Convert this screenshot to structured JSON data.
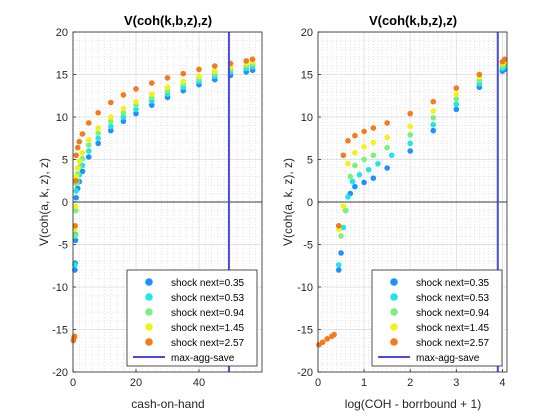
{
  "chart_data": [
    {
      "type": "scatter",
      "title": "V(coh(k,b,z),z)",
      "xlabel": "cash-on-hand",
      "ylabel": "V(coh(a, k, z), z)",
      "xlim": [
        0,
        60
      ],
      "ylim": [
        -20,
        20
      ],
      "xticks": [
        "0",
        "20",
        "40"
      ],
      "yticks": [
        "-20",
        "-15",
        "-10",
        "-5",
        "0",
        "5",
        "10",
        "15",
        "20"
      ],
      "grid": "on",
      "minor_grid": "on",
      "legend_placement": "bottom-right",
      "vertical_line": {
        "name": "max-agg-save",
        "x": 49.5,
        "color": "#4a4ae0"
      },
      "zero_line": 0,
      "series": [
        {
          "name": "shock next=0.35",
          "color": "#1e90ff",
          "points": [
            [
              0.6,
              -8.0
            ],
            [
              0.7,
              -7.2
            ],
            [
              0.8,
              -4.5
            ],
            [
              1,
              0.5
            ],
            [
              1.5,
              1.6
            ],
            [
              2,
              2.4
            ],
            [
              3,
              3.6
            ],
            [
              5,
              5.3
            ],
            [
              8,
              6.9
            ],
            [
              12,
              8.4
            ],
            [
              16,
              9.5
            ],
            [
              20,
              10.4
            ],
            [
              25,
              11.4
            ],
            [
              30,
              12.3
            ],
            [
              35,
              13.1
            ],
            [
              40,
              13.8
            ],
            [
              45,
              14.4
            ],
            [
              50,
              14.9
            ],
            [
              55,
              15.3
            ],
            [
              57,
              15.5
            ]
          ]
        },
        {
          "name": "shock next=0.53",
          "color": "#22e5e5",
          "points": [
            [
              0.6,
              -7.4
            ],
            [
              0.8,
              -3.8
            ],
            [
              1,
              1.3
            ],
            [
              1.5,
              2.4
            ],
            [
              2,
              3.2
            ],
            [
              3,
              4.3
            ],
            [
              5,
              6.0
            ],
            [
              8,
              7.5
            ],
            [
              12,
              8.9
            ],
            [
              16,
              10.0
            ],
            [
              20,
              10.9
            ],
            [
              25,
              11.9
            ],
            [
              30,
              12.7
            ],
            [
              35,
              13.5
            ],
            [
              40,
              14.2
            ],
            [
              45,
              14.8
            ],
            [
              50,
              15.3
            ],
            [
              55,
              15.7
            ],
            [
              57,
              15.9
            ]
          ]
        },
        {
          "name": "shock next=0.94",
          "color": "#7cf07c",
          "points": [
            [
              0.7,
              -4.0
            ],
            [
              0.9,
              -1.0
            ],
            [
              1,
              2.2
            ],
            [
              1.5,
              3.3
            ],
            [
              2,
              4.1
            ],
            [
              3,
              5.1
            ],
            [
              5,
              6.7
            ],
            [
              8,
              8.1
            ],
            [
              12,
              9.5
            ],
            [
              16,
              10.5
            ],
            [
              20,
              11.4
            ],
            [
              25,
              12.3
            ],
            [
              30,
              13.1
            ],
            [
              35,
              13.9
            ],
            [
              40,
              14.5
            ],
            [
              45,
              15.1
            ],
            [
              50,
              15.6
            ],
            [
              55,
              16.0
            ],
            [
              57,
              16.2
            ]
          ]
        },
        {
          "name": "shock next=1.45",
          "color": "#f2f21a",
          "points": [
            [
              0.6,
              -3.2
            ],
            [
              0.8,
              -0.5
            ],
            [
              1,
              3.0
            ],
            [
              1.5,
              4.0
            ],
            [
              2,
              4.8
            ],
            [
              3,
              5.8
            ],
            [
              5,
              7.3
            ],
            [
              8,
              8.7
            ],
            [
              12,
              10.0
            ],
            [
              16,
              11.0
            ],
            [
              20,
              11.8
            ],
            [
              25,
              12.7
            ],
            [
              30,
              13.5
            ],
            [
              35,
              14.2
            ],
            [
              40,
              14.8
            ],
            [
              45,
              15.4
            ],
            [
              50,
              15.9
            ],
            [
              55,
              16.3
            ],
            [
              57,
              16.5
            ]
          ]
        },
        {
          "name": "shock next=2.57",
          "color": "#f47a1e",
          "points": [
            [
              0.1,
              -16.3
            ],
            [
              0.3,
              -16.0
            ],
            [
              0.5,
              -15.8
            ],
            [
              0.7,
              -2.8
            ],
            [
              0.9,
              2.5
            ],
            [
              1,
              5.5
            ],
            [
              1.5,
              6.4
            ],
            [
              2,
              7.1
            ],
            [
              3,
              8.0
            ],
            [
              5,
              9.3
            ],
            [
              8,
              10.5
            ],
            [
              12,
              11.7
            ],
            [
              16,
              12.6
            ],
            [
              20,
              13.3
            ],
            [
              25,
              14.0
            ],
            [
              30,
              14.6
            ],
            [
              35,
              15.1
            ],
            [
              40,
              15.6
            ],
            [
              45,
              16.0
            ],
            [
              50,
              16.3
            ],
            [
              55,
              16.6
            ],
            [
              57,
              16.8
            ]
          ]
        }
      ]
    },
    {
      "type": "scatter",
      "title": "V(coh(k,b,z),z)",
      "xlabel": "log(COH - borrbound + 1)",
      "ylabel": "V(coh(a, k, z), z)",
      "xlim": [
        0,
        4.1
      ],
      "ylim": [
        -20,
        20
      ],
      "xticks": [
        "0",
        "1",
        "2",
        "3",
        "4"
      ],
      "yticks": [
        "-20",
        "-15",
        "-10",
        "-5",
        "0",
        "5",
        "10",
        "15",
        "20"
      ],
      "grid": "on",
      "minor_grid": "on",
      "legend_placement": "bottom-right",
      "vertical_line": {
        "name": "max-agg-save",
        "x": 3.9,
        "color": "#4a4ae0"
      },
      "zero_line": 0,
      "series": [
        {
          "name": "shock next=0.35",
          "color": "#1e90ff",
          "points": [
            [
              0.45,
              -8.0
            ],
            [
              0.5,
              -6.0
            ],
            [
              0.6,
              -1.0
            ],
            [
              0.7,
              1.0
            ],
            [
              0.8,
              1.8
            ],
            [
              1.0,
              2.3
            ],
            [
              1.2,
              2.8
            ],
            [
              1.5,
              4.0
            ],
            [
              2.0,
              6.0
            ],
            [
              2.5,
              8.4
            ],
            [
              3.0,
              10.9
            ],
            [
              3.5,
              13.5
            ],
            [
              4.0,
              15.4
            ],
            [
              4.05,
              15.6
            ]
          ]
        },
        {
          "name": "shock next=0.53",
          "color": "#22e5e5",
          "points": [
            [
              0.45,
              -7.4
            ],
            [
              0.55,
              -3.0
            ],
            [
              0.65,
              0.6
            ],
            [
              0.75,
              2.4
            ],
            [
              0.9,
              3.2
            ],
            [
              1.1,
              3.8
            ],
            [
              1.3,
              4.5
            ],
            [
              1.6,
              5.5
            ],
            [
              2.0,
              6.9
            ],
            [
              2.5,
              9.1
            ],
            [
              3.0,
              11.5
            ],
            [
              3.5,
              13.9
            ],
            [
              4.0,
              15.7
            ],
            [
              4.05,
              15.9
            ]
          ]
        },
        {
          "name": "shock next=0.94",
          "color": "#7cf07c",
          "points": [
            [
              0.5,
              -4.0
            ],
            [
              0.6,
              -1.0
            ],
            [
              0.7,
              3.0
            ],
            [
              0.8,
              4.3
            ],
            [
              1.0,
              5.0
            ],
            [
              1.2,
              5.5
            ],
            [
              1.5,
              6.4
            ],
            [
              2.0,
              7.9
            ],
            [
              2.5,
              9.9
            ],
            [
              3.0,
              12.1
            ],
            [
              3.5,
              14.3
            ],
            [
              4.0,
              16.0
            ],
            [
              4.05,
              16.2
            ]
          ]
        },
        {
          "name": "shock next=1.45",
          "color": "#f2f21a",
          "points": [
            [
              0.45,
              -3.2
            ],
            [
              0.55,
              -0.5
            ],
            [
              0.65,
              4.5
            ],
            [
              0.8,
              5.8
            ],
            [
              1.0,
              6.5
            ],
            [
              1.2,
              7.0
            ],
            [
              1.5,
              7.6
            ],
            [
              2.0,
              8.9
            ],
            [
              2.5,
              10.7
            ],
            [
              3.0,
              12.7
            ],
            [
              3.5,
              14.7
            ],
            [
              4.0,
              16.3
            ],
            [
              4.05,
              16.5
            ]
          ]
        },
        {
          "name": "shock next=2.57",
          "color": "#f47a1e",
          "points": [
            [
              0.02,
              -16.8
            ],
            [
              0.1,
              -16.5
            ],
            [
              0.2,
              -16.1
            ],
            [
              0.3,
              -15.8
            ],
            [
              0.35,
              -15.6
            ],
            [
              0.45,
              -2.8
            ],
            [
              0.55,
              5.5
            ],
            [
              0.65,
              7.2
            ],
            [
              0.8,
              7.8
            ],
            [
              1.0,
              8.3
            ],
            [
              1.2,
              8.7
            ],
            [
              1.5,
              9.3
            ],
            [
              2.0,
              10.4
            ],
            [
              2.5,
              11.8
            ],
            [
              3.0,
              13.4
            ],
            [
              3.5,
              15.0
            ],
            [
              4.0,
              16.5
            ],
            [
              4.05,
              16.8
            ]
          ]
        }
      ]
    }
  ]
}
